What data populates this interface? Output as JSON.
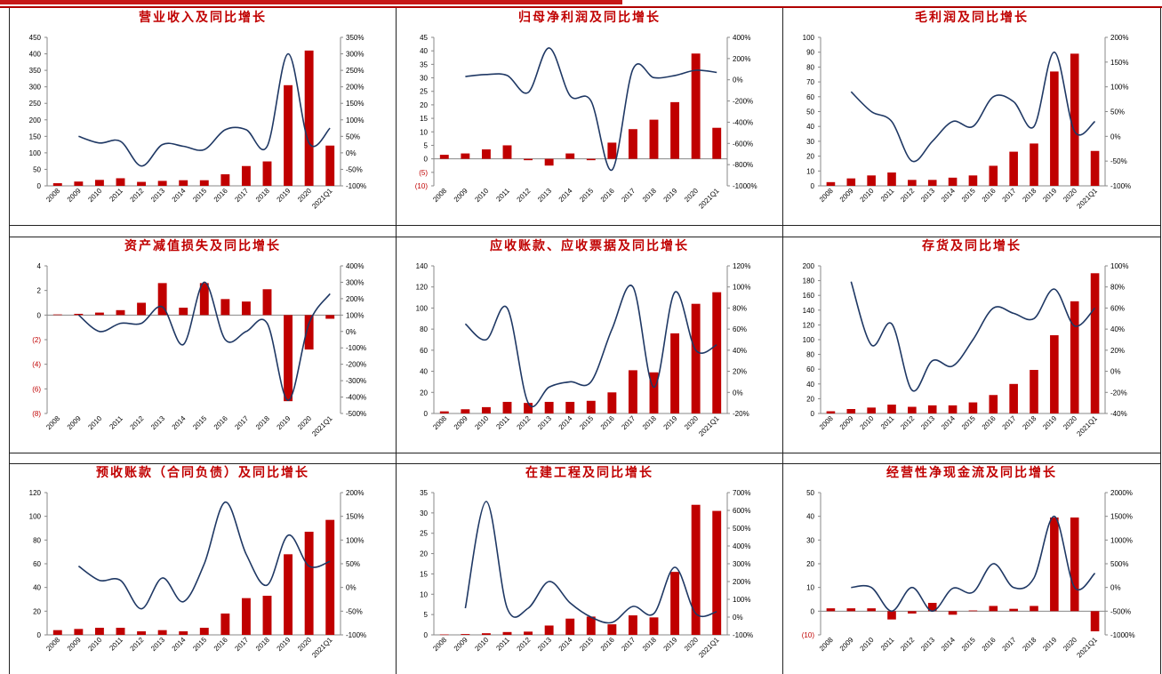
{
  "colors": {
    "bar": "#c00000",
    "line": "#1f3864",
    "negative_label": "#c00000",
    "title": "#c00000"
  },
  "chart_data": [
    {
      "type": "bar+line",
      "title": "营业收入及同比增长",
      "categories": [
        "2008",
        "2009",
        "2010",
        "2011",
        "2012",
        "2013",
        "2014",
        "2015",
        "2016",
        "2017",
        "2018",
        "2019",
        "2020",
        "2021Q1"
      ],
      "bar_values": [
        8,
        13,
        18,
        23,
        12,
        15,
        17,
        17,
        35,
        60,
        74,
        305,
        410,
        122
      ],
      "line_values": [
        null,
        50,
        30,
        35,
        -40,
        25,
        20,
        10,
        70,
        70,
        20,
        300,
        30,
        75
      ],
      "left_ylim": [
        0,
        450
      ],
      "left_ticks": [
        "0",
        "50",
        "100",
        "150",
        "200",
        "250",
        "300",
        "350",
        "400",
        "450"
      ],
      "right_ylim": [
        -100,
        350
      ],
      "right_ticks": [
        "-100%",
        "-50%",
        "0%",
        "50%",
        "100%",
        "150%",
        "200%",
        "250%",
        "300%",
        "350%"
      ]
    },
    {
      "type": "bar+line",
      "title": "归母净利润及同比增长",
      "categories": [
        "2008",
        "2009",
        "2010",
        "2011",
        "2012",
        "2013",
        "2014",
        "2015",
        "2016",
        "2017",
        "2018",
        "2019",
        "2020",
        "2021Q1"
      ],
      "bar_values": [
        1.5,
        2,
        3.5,
        5,
        -0.5,
        -2.5,
        2,
        -0.5,
        6,
        11,
        14.5,
        21,
        39,
        11.5
      ],
      "line_values": [
        null,
        30,
        50,
        40,
        -120,
        300,
        -150,
        -200,
        -850,
        100,
        20,
        40,
        90,
        70
      ],
      "left_ylim": [
        -10,
        45
      ],
      "left_ticks": [
        "(10)",
        "(5)",
        "0",
        "5",
        "10",
        "15",
        "20",
        "25",
        "30",
        "35",
        "40",
        "45"
      ],
      "right_ylim": [
        -1000,
        400
      ],
      "right_ticks": [
        "-1000%",
        "-800%",
        "-600%",
        "-400%",
        "-200%",
        "0%",
        "200%",
        "400%"
      ]
    },
    {
      "type": "bar+line",
      "title": "毛利润及同比增长",
      "categories": [
        "2008",
        "2009",
        "2010",
        "2011",
        "2012",
        "2013",
        "2014",
        "2015",
        "2016",
        "2017",
        "2018",
        "2019",
        "2020",
        "2021Q1"
      ],
      "bar_values": [
        2.5,
        5,
        7,
        9,
        4,
        4,
        5.5,
        7,
        13.5,
        23,
        28.5,
        77,
        89,
        23.5
      ],
      "line_values": [
        null,
        90,
        50,
        30,
        -50,
        -10,
        30,
        20,
        80,
        70,
        20,
        170,
        10,
        30
      ],
      "left_ylim": [
        0,
        100
      ],
      "left_ticks": [
        "0",
        "10",
        "20",
        "30",
        "40",
        "50",
        "60",
        "70",
        "80",
        "90",
        "100"
      ],
      "right_ylim": [
        -100,
        200
      ],
      "right_ticks": [
        "-100%",
        "-50%",
        "0%",
        "50%",
        "100%",
        "150%",
        "200%"
      ]
    },
    {
      "type": "bar+line",
      "title": "资产减值损失及同比增长",
      "categories": [
        "2008",
        "2009",
        "2010",
        "2011",
        "2012",
        "2013",
        "2014",
        "2015",
        "2016",
        "2017",
        "2018",
        "2019",
        "2020",
        "2021Q1"
      ],
      "bar_values": [
        0.05,
        0.1,
        0.2,
        0.4,
        1.0,
        2.6,
        0.6,
        2.6,
        1.3,
        1.1,
        2.1,
        -7.0,
        -2.8,
        -0.3
      ],
      "line_values": [
        null,
        100,
        0,
        50,
        50,
        150,
        -80,
        300,
        -50,
        0,
        50,
        -420,
        50,
        230
      ],
      "left_ylim": [
        -8,
        4
      ],
      "left_ticks": [
        "(8)",
        "(6)",
        "(4)",
        "(2)",
        "0",
        "2",
        "4"
      ],
      "right_ylim": [
        -500,
        400
      ],
      "right_ticks": [
        "-500%",
        "-400%",
        "-300%",
        "-200%",
        "-100%",
        "0%",
        "100%",
        "200%",
        "300%",
        "400%"
      ]
    },
    {
      "type": "bar+line",
      "title": "应收账款、应收票据及同比增长",
      "categories": [
        "2008",
        "2009",
        "2010",
        "2011",
        "2012",
        "2013",
        "2014",
        "2015",
        "2016",
        "2017",
        "2018",
        "2019",
        "2020",
        "2021Q1"
      ],
      "bar_values": [
        2,
        4,
        6,
        11,
        10,
        11,
        11,
        12,
        20,
        41,
        39,
        76,
        104,
        115
      ],
      "line_values": [
        null,
        65,
        50,
        80,
        -10,
        5,
        10,
        10,
        60,
        100,
        5,
        95,
        40,
        45
      ],
      "left_ylim": [
        0,
        140
      ],
      "left_ticks": [
        "0",
        "20",
        "40",
        "60",
        "80",
        "100",
        "120",
        "140"
      ],
      "right_ylim": [
        -20,
        120
      ],
      "right_ticks": [
        "-20%",
        "0%",
        "20%",
        "40%",
        "60%",
        "80%",
        "100%",
        "120%"
      ]
    },
    {
      "type": "bar+line",
      "title": "存货及同比增长",
      "categories": [
        "2008",
        "2009",
        "2010",
        "2011",
        "2012",
        "2013",
        "2014",
        "2015",
        "2016",
        "2017",
        "2018",
        "2019",
        "2020",
        "2021Q1"
      ],
      "bar_values": [
        3,
        6,
        8,
        12,
        9,
        11,
        11,
        15,
        25,
        40,
        59,
        106,
        152,
        190
      ],
      "line_values": [
        null,
        85,
        25,
        45,
        -18,
        10,
        5,
        30,
        60,
        55,
        50,
        78,
        43,
        60
      ],
      "left_ylim": [
        0,
        200
      ],
      "left_ticks": [
        "0",
        "20",
        "40",
        "60",
        "80",
        "100",
        "120",
        "140",
        "160",
        "180",
        "200"
      ],
      "right_ylim": [
        -40,
        100
      ],
      "right_ticks": [
        "-40%",
        "-20%",
        "0%",
        "20%",
        "40%",
        "60%",
        "80%",
        "100%"
      ]
    },
    {
      "type": "bar+line",
      "title": "预收账款（合同负债）及同比增长",
      "categories": [
        "2008",
        "2009",
        "2010",
        "2011",
        "2012",
        "2013",
        "2014",
        "2015",
        "2016",
        "2017",
        "2018",
        "2019",
        "2020",
        "2021Q1"
      ],
      "bar_values": [
        4,
        5,
        6,
        6,
        3,
        4,
        3,
        6,
        18,
        31,
        33,
        68,
        87,
        97
      ],
      "line_values": [
        null,
        45,
        15,
        15,
        -45,
        20,
        -30,
        50,
        180,
        70,
        5,
        110,
        45,
        55
      ],
      "left_ylim": [
        0,
        120
      ],
      "left_ticks": [
        "0",
        "20",
        "40",
        "60",
        "80",
        "100",
        "120"
      ],
      "right_ylim": [
        -100,
        200
      ],
      "right_ticks": [
        "-100%",
        "-50%",
        "0%",
        "50%",
        "100%",
        "150%",
        "200%"
      ]
    },
    {
      "type": "bar+line",
      "title": "在建工程及同比增长",
      "categories": [
        "2008",
        "2009",
        "2010",
        "2011",
        "2012",
        "2013",
        "2014",
        "2015",
        "2016",
        "2017",
        "2018",
        "2019",
        "2020",
        "2021Q1"
      ],
      "bar_values": [
        0.1,
        0.2,
        0.4,
        0.7,
        0.8,
        2.3,
        4.0,
        4.5,
        2.6,
        4.8,
        4.3,
        15.5,
        32,
        30.5
      ],
      "line_values": [
        null,
        50,
        650,
        50,
        50,
        200,
        80,
        0,
        -30,
        60,
        20,
        280,
        20,
        30
      ],
      "left_ylim": [
        0,
        35
      ],
      "left_ticks": [
        "0",
        "5",
        "10",
        "15",
        "20",
        "25",
        "30",
        "35"
      ],
      "right_ylim": [
        -100,
        700
      ],
      "right_ticks": [
        "-100%",
        "0%",
        "100%",
        "200%",
        "300%",
        "400%",
        "500%",
        "600%",
        "700%"
      ]
    },
    {
      "type": "bar+line",
      "title": "经营性净现金流及同比增长",
      "categories": [
        "2008",
        "2009",
        "2010",
        "2011",
        "2012",
        "2013",
        "2014",
        "2015",
        "2016",
        "2017",
        "2018",
        "2019",
        "2020",
        "2021Q1"
      ],
      "bar_values": [
        1.2,
        1.2,
        1.2,
        -3.5,
        -1,
        3.5,
        -1.5,
        0.3,
        2.2,
        1.0,
        2.2,
        39.5,
        39.5,
        -8.5
      ],
      "line_values": [
        null,
        0,
        0,
        -500,
        0,
        -500,
        -20,
        -100,
        500,
        0,
        200,
        1500,
        0,
        300
      ],
      "left_ylim": [
        -10,
        50
      ],
      "left_ticks": [
        "(10)",
        "0",
        "10",
        "20",
        "30",
        "40",
        "50"
      ],
      "right_ylim": [
        -1000,
        2000
      ],
      "right_ticks": [
        "-1000%",
        "-500%",
        "0%",
        "500%",
        "1000%",
        "1500%",
        "2000%"
      ]
    }
  ]
}
